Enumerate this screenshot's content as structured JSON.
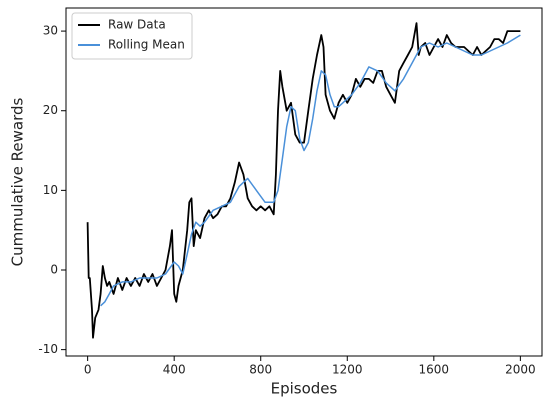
{
  "chart_data": {
    "type": "line",
    "xlabel": "Episodes",
    "ylabel": "Cummulative Rewards",
    "xlim": [
      -100,
      2100
    ],
    "ylim": [
      -10.8,
      32.9
    ],
    "xticks": [
      0,
      400,
      800,
      1200,
      1600,
      2000
    ],
    "yticks": [
      -10,
      0,
      10,
      20,
      30
    ],
    "legend": "upper left",
    "grid": false,
    "series": [
      {
        "name": "Raw Data",
        "color": "#000000",
        "x": [
          0,
          5,
          10,
          20,
          25,
          35,
          50,
          60,
          70,
          80,
          90,
          100,
          120,
          140,
          160,
          180,
          200,
          220,
          240,
          260,
          280,
          300,
          320,
          340,
          360,
          380,
          390,
          400,
          410,
          420,
          440,
          460,
          470,
          480,
          490,
          500,
          520,
          540,
          560,
          580,
          600,
          620,
          640,
          660,
          680,
          700,
          720,
          740,
          760,
          780,
          800,
          820,
          840,
          860,
          870,
          880,
          890,
          900,
          920,
          940,
          960,
          980,
          1000,
          1020,
          1040,
          1060,
          1080,
          1090,
          1100,
          1120,
          1140,
          1160,
          1180,
          1200,
          1220,
          1240,
          1260,
          1280,
          1300,
          1320,
          1340,
          1360,
          1380,
          1400,
          1420,
          1440,
          1460,
          1480,
          1500,
          1520,
          1530,
          1540,
          1560,
          1580,
          1600,
          1620,
          1640,
          1660,
          1680,
          1700,
          1720,
          1740,
          1760,
          1780,
          1800,
          1820,
          1840,
          1860,
          1880,
          1900,
          1920,
          1940,
          1960,
          1980,
          2000
        ],
        "values": [
          6,
          -1,
          -1,
          -5,
          -8.5,
          -6,
          -5,
          -3,
          0.5,
          -1,
          -2,
          -1.5,
          -3,
          -1,
          -2.5,
          -1,
          -2,
          -1,
          -2,
          -0.5,
          -1.5,
          -0.5,
          -2,
          -1,
          0,
          3,
          5,
          -3,
          -4,
          -2,
          0,
          5,
          8.5,
          9,
          3,
          5,
          4,
          6.5,
          7.5,
          6.5,
          7,
          8,
          8,
          9,
          11,
          13.5,
          12,
          9,
          8,
          7.5,
          8,
          7.5,
          8,
          7,
          12,
          20,
          25,
          23,
          20,
          21,
          17,
          16,
          16,
          20,
          24,
          27,
          29.5,
          28,
          22,
          20,
          19,
          21,
          22,
          21,
          22,
          24,
          23,
          24,
          24,
          23.5,
          25,
          25,
          23,
          22,
          21,
          25,
          26,
          27,
          28,
          31,
          27,
          28,
          28.5,
          27,
          28,
          29,
          28,
          29.5,
          28.5,
          28,
          28,
          28,
          27.5,
          27,
          28,
          27,
          27.5,
          28,
          29,
          29,
          28.5,
          30,
          30,
          30,
          30
        ]
      },
      {
        "name": "Rolling Mean",
        "color": "#4a90d9",
        "x": [
          60,
          80,
          100,
          120,
          160,
          200,
          240,
          280,
          320,
          360,
          400,
          420,
          440,
          460,
          480,
          500,
          520,
          540,
          580,
          620,
          660,
          700,
          740,
          780,
          820,
          860,
          880,
          900,
          920,
          940,
          960,
          980,
          1000,
          1020,
          1040,
          1060,
          1080,
          1100,
          1120,
          1140,
          1160,
          1180,
          1220,
          1260,
          1300,
          1340,
          1380,
          1420,
          1460,
          1500,
          1540,
          1580,
          1620,
          1660,
          1700,
          1740,
          1780,
          1820,
          1860,
          1900,
          1940,
          2000
        ],
        "values": [
          -4.5,
          -4,
          -3,
          -2,
          -1.5,
          -1.5,
          -1,
          -1,
          -1,
          -0.5,
          1,
          0.5,
          -0.5,
          2,
          4.5,
          6,
          5.5,
          6,
          7.5,
          8,
          8.5,
          10.5,
          11.5,
          10,
          8.5,
          8.5,
          10,
          14,
          18,
          20.5,
          20,
          16.5,
          15,
          16,
          19,
          22.5,
          25,
          24.5,
          22,
          20.5,
          20.5,
          21,
          22,
          23.5,
          25.5,
          25,
          23.5,
          22.5,
          24,
          26,
          28,
          28.5,
          28,
          28.5,
          28,
          27.5,
          27,
          27,
          27.5,
          28,
          28.5,
          29.5
        ]
      }
    ]
  }
}
